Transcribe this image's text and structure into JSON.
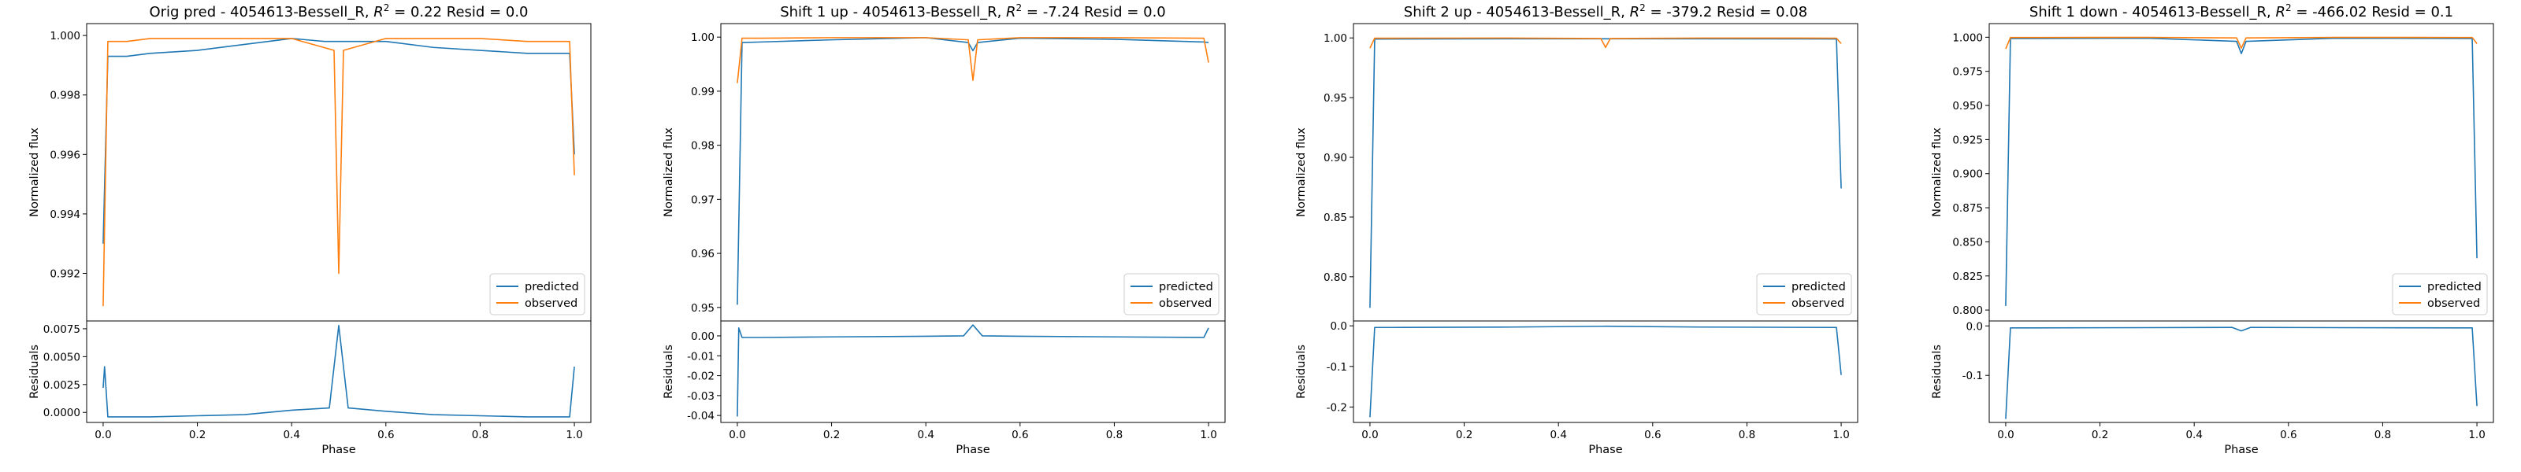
{
  "colors": {
    "predicted": "#1f77b4",
    "observed": "#ff7f0e",
    "frame": "#000000"
  },
  "chart_data": [
    {
      "type": "line",
      "title": "Orig pred - 4054613-Bessell_R, R² = 0.22 Resid = 0.0",
      "title_parts": {
        "prefix": "Orig pred - 4054613-Bessell_R, ",
        "r2_value": "0.22",
        "resid_text": "Resid = 0.0"
      },
      "xlabel": "Phase",
      "ylabel": "Normalized flux",
      "resid_ylabel": "Residuals",
      "legend": {
        "placement": "lower-right",
        "entries": [
          "predicted",
          "observed"
        ]
      },
      "xlim": [
        -0.035,
        1.035
      ],
      "ylim": [
        0.9904,
        1.0004
      ],
      "resid_ylim": [
        -0.0009,
        0.0082
      ],
      "xticks": [
        "0.0",
        "0.2",
        "0.4",
        "0.6",
        "0.8",
        "1.0"
      ],
      "yticks": [
        "0.992",
        "0.994",
        "0.996",
        "0.998",
        "1.000"
      ],
      "resid_yticks": [
        "0.0000",
        "0.0025",
        "0.0050",
        "0.0075"
      ],
      "series": [
        {
          "name": "predicted",
          "x": [
            0,
            0.01,
            0.05,
            0.1,
            0.2,
            0.3,
            0.4,
            0.47,
            0.5,
            0.53,
            0.6,
            0.7,
            0.8,
            0.9,
            0.99,
            1.0
          ],
          "y": [
            0.993,
            0.9993,
            0.9993,
            0.9994,
            0.9995,
            0.9997,
            0.9999,
            0.9998,
            0.9998,
            0.9998,
            0.9998,
            0.9996,
            0.9995,
            0.9994,
            0.9994,
            0.996
          ]
        },
        {
          "name": "observed",
          "x": [
            0,
            0.01,
            0.05,
            0.1,
            0.2,
            0.3,
            0.4,
            0.49,
            0.5,
            0.51,
            0.6,
            0.7,
            0.8,
            0.9,
            0.99,
            1.0
          ],
          "y": [
            0.9909,
            0.9998,
            0.9998,
            0.9999,
            0.9999,
            0.9999,
            0.9999,
            0.9995,
            0.992,
            0.9995,
            0.9999,
            0.9999,
            0.9999,
            0.9998,
            0.9998,
            0.9953
          ]
        }
      ],
      "residuals": {
        "x": [
          0,
          0.003,
          0.01,
          0.05,
          0.1,
          0.2,
          0.3,
          0.4,
          0.48,
          0.5,
          0.52,
          0.6,
          0.7,
          0.8,
          0.9,
          0.99,
          1.0
        ],
        "y": [
          0.0022,
          0.0041,
          -0.0004,
          -0.0004,
          -0.0004,
          -0.0003,
          -0.0002,
          0.0002,
          0.0004,
          0.0078,
          0.0004,
          0.0001,
          -0.0002,
          -0.0003,
          -0.0004,
          -0.0004,
          0.0041
        ]
      }
    },
    {
      "type": "line",
      "title": "Shift 1 up - 4054613-Bessell_R, R² = -7.24 Resid = 0.0",
      "title_parts": {
        "prefix": "Shift 1 up - 4054613-Bessell_R, ",
        "r2_value": "-7.24",
        "resid_text": "Resid = 0.0"
      },
      "xlabel": "Phase",
      "ylabel": "Normalized flux",
      "resid_ylabel": "Residuals",
      "legend": {
        "placement": "lower-right",
        "entries": [
          "predicted",
          "observed"
        ]
      },
      "xlim": [
        -0.035,
        1.035
      ],
      "ylim": [
        0.9475,
        1.0025
      ],
      "resid_ylim": [
        -0.0435,
        0.0075
      ],
      "xticks": [
        "0.0",
        "0.2",
        "0.4",
        "0.6",
        "0.8",
        "1.0"
      ],
      "yticks": [
        "0.95",
        "0.96",
        "0.97",
        "0.98",
        "0.99",
        "1.00"
      ],
      "resid_yticks": [
        "-0.04",
        "-0.03",
        "-0.02",
        "-0.01",
        "0.00"
      ],
      "series": [
        {
          "name": "predicted",
          "x": [
            0,
            0.01,
            0.05,
            0.2,
            0.4,
            0.49,
            0.5,
            0.51,
            0.6,
            0.8,
            0.99,
            1.0
          ],
          "y": [
            0.9505,
            0.999,
            0.9991,
            0.9995,
            0.9999,
            0.999,
            0.9975,
            0.999,
            0.9998,
            0.9996,
            0.9991,
            0.999
          ]
        },
        {
          "name": "observed",
          "x": [
            0,
            0.01,
            0.05,
            0.2,
            0.4,
            0.49,
            0.5,
            0.51,
            0.6,
            0.8,
            0.99,
            1.0
          ],
          "y": [
            0.9915,
            0.9998,
            0.9998,
            0.9999,
            0.9999,
            0.9995,
            0.992,
            0.9995,
            0.9999,
            0.9999,
            0.9998,
            0.9953
          ]
        }
      ],
      "residuals": {
        "x": [
          0,
          0.003,
          0.01,
          0.05,
          0.2,
          0.4,
          0.48,
          0.5,
          0.52,
          0.6,
          0.8,
          0.99,
          1.0
        ],
        "y": [
          -0.0405,
          0.004,
          -0.0008,
          -0.0008,
          -0.0005,
          -0.0002,
          0.0,
          0.0055,
          0.0,
          -0.0002,
          -0.0005,
          -0.0008,
          0.004
        ]
      }
    },
    {
      "type": "line",
      "title": "Shift 2 up - 4054613-Bessell_R, R² = -379.2 Resid = 0.08",
      "title_parts": {
        "prefix": "Shift 2 up - 4054613-Bessell_R, ",
        "r2_value": "-379.2",
        "resid_text": "Resid = 0.08"
      },
      "xlabel": "Phase",
      "ylabel": "Normalized flux",
      "resid_ylabel": "Residuals",
      "legend": {
        "placement": "lower-right",
        "entries": [
          "predicted",
          "observed"
        ]
      },
      "xlim": [
        -0.035,
        1.035
      ],
      "ylim": [
        0.763,
        1.012
      ],
      "resid_ylim": [
        -0.238,
        0.012
      ],
      "xticks": [
        "0.0",
        "0.2",
        "0.4",
        "0.6",
        "0.8",
        "1.0"
      ],
      "yticks": [
        "0.80",
        "0.85",
        "0.90",
        "0.95",
        "1.00"
      ],
      "resid_yticks": [
        "-0.2",
        "-0.1",
        "0.0"
      ],
      "series": [
        {
          "name": "predicted",
          "x": [
            0,
            0.01,
            0.05,
            0.3,
            0.5,
            0.7,
            0.99,
            1.0
          ],
          "y": [
            0.774,
            0.999,
            0.9991,
            0.9993,
            0.9993,
            0.9993,
            0.9991,
            0.874
          ]
        },
        {
          "name": "observed",
          "x": [
            0,
            0.01,
            0.05,
            0.3,
            0.49,
            0.5,
            0.51,
            0.7,
            0.99,
            1.0
          ],
          "y": [
            0.9915,
            0.9998,
            0.9998,
            0.9999,
            0.9995,
            0.992,
            0.9995,
            0.9999,
            0.9998,
            0.9953
          ]
        }
      ],
      "residuals": {
        "x": [
          0,
          0.01,
          0.05,
          0.3,
          0.5,
          0.7,
          0.99,
          1.0
        ],
        "y": [
          -0.225,
          -0.004,
          -0.004,
          -0.003,
          -0.001,
          -0.003,
          -0.004,
          -0.121
        ]
      }
    },
    {
      "type": "line",
      "title": "Shift 1 down - 4054613-Bessell_R, R² = -466.02 Resid = 0.1",
      "title_parts": {
        "prefix": "Shift 1 down - 4054613-Bessell_R, ",
        "r2_value": "-466.02",
        "resid_text": "Resid = 0.1"
      },
      "xlabel": "Phase",
      "ylabel": "Normalized flux",
      "resid_ylabel": "Residuals",
      "legend": {
        "placement": "lower-right",
        "entries": [
          "predicted",
          "observed"
        ]
      },
      "xlim": [
        -0.035,
        1.035
      ],
      "ylim": [
        0.792,
        1.01
      ],
      "resid_ylim": [
        -0.195,
        0.01
      ],
      "xticks": [
        "0.0",
        "0.2",
        "0.4",
        "0.6",
        "0.8",
        "1.0"
      ],
      "yticks": [
        "0.800",
        "0.825",
        "0.850",
        "0.875",
        "0.900",
        "0.925",
        "0.950",
        "0.975",
        "1.000"
      ],
      "resid_yticks": [
        "-0.1",
        "0.0"
      ],
      "series": [
        {
          "name": "predicted",
          "x": [
            0,
            0.01,
            0.05,
            0.3,
            0.49,
            0.5,
            0.51,
            0.7,
            0.99,
            1.0
          ],
          "y": [
            0.803,
            0.9991,
            0.9991,
            0.9993,
            0.997,
            0.988,
            0.997,
            0.9993,
            0.9991,
            0.838
          ]
        },
        {
          "name": "observed",
          "x": [
            0,
            0.01,
            0.05,
            0.3,
            0.49,
            0.5,
            0.51,
            0.7,
            0.99,
            1.0
          ],
          "y": [
            0.9915,
            0.9998,
            0.9998,
            0.9999,
            0.9995,
            0.992,
            0.9995,
            0.9999,
            0.9998,
            0.9953
          ]
        }
      ],
      "residuals": {
        "x": [
          0,
          0.01,
          0.05,
          0.3,
          0.48,
          0.5,
          0.52,
          0.7,
          0.99,
          1.0
        ],
        "y": [
          -0.188,
          -0.004,
          -0.004,
          -0.0035,
          -0.003,
          -0.01,
          -0.003,
          -0.0035,
          -0.004,
          -0.162
        ]
      }
    }
  ]
}
